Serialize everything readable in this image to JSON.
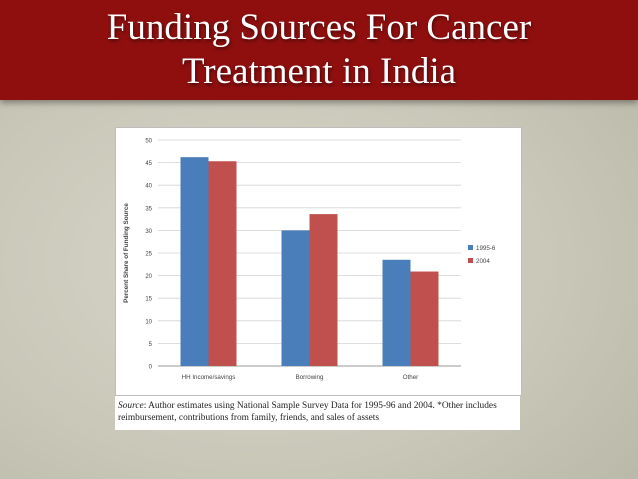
{
  "slide": {
    "title_line1": "Funding Sources For Cancer",
    "title_line2": "Treatment in India",
    "title_bar_color": "#8f0f0f"
  },
  "source_note": {
    "label": "Source",
    "text": ": Author estimates using National Sample Survey Data for 1995-96 and 2004. *Other includes reimbursement, contributions from family, friends, and sales of assets"
  },
  "chart_data": {
    "type": "bar",
    "title": "",
    "xlabel": "",
    "ylabel": "Percent Share of Funding Source",
    "ylim": [
      0,
      50
    ],
    "yticks": [
      0,
      5,
      10,
      15,
      20,
      25,
      30,
      35,
      40,
      45,
      50
    ],
    "grid": true,
    "legend_position": "right",
    "categories": [
      "HH Income/savings",
      "Borrowing",
      "Other"
    ],
    "series": [
      {
        "name": "1995-6",
        "color": "#4a7ebb",
        "values": [
          46.2,
          30.0,
          23.5
        ]
      },
      {
        "name": "2004",
        "color": "#c0504d",
        "values": [
          45.3,
          33.6,
          20.9
        ]
      }
    ]
  }
}
